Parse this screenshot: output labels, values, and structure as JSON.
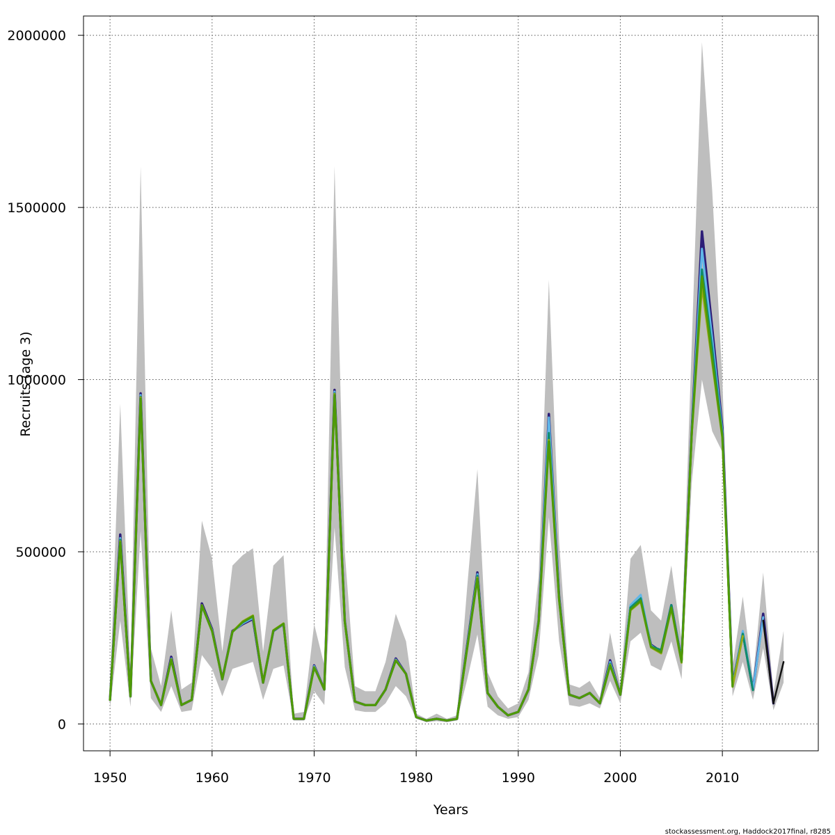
{
  "credit": "stockassessment.org, Haddock2017final, r8285",
  "chart_data": {
    "type": "line",
    "title": "",
    "xlabel": "Years",
    "ylabel": "Recruits (age 3)",
    "xlim": [
      1947.4,
      2019.4
    ],
    "ylim": [
      -78000,
      2056000
    ],
    "x_ticks": [
      1950,
      1960,
      1970,
      1980,
      1990,
      2000,
      2010
    ],
    "y_ticks": [
      0,
      500000,
      1000000,
      1500000,
      2000000
    ],
    "x_tick_labels": [
      "1950",
      "1960",
      "1970",
      "1980",
      "1990",
      "2000",
      "2010"
    ],
    "y_tick_labels": [
      "0",
      "500000",
      "1000000",
      "1500000",
      "2000000"
    ],
    "grid": true,
    "band_color": "#bebebe",
    "confidence_band": {
      "years": [
        1950,
        1951,
        1952,
        1953,
        1954,
        1955,
        1956,
        1957,
        1958,
        1959,
        1960,
        1961,
        1962,
        1963,
        1964,
        1965,
        1966,
        1967,
        1968,
        1969,
        1970,
        1971,
        1972,
        1973,
        1974,
        1975,
        1976,
        1977,
        1978,
        1979,
        1980,
        1981,
        1982,
        1983,
        1984,
        1985,
        1986,
        1987,
        1988,
        1989,
        1990,
        1991,
        1992,
        1993,
        1994,
        1995,
        1996,
        1997,
        1998,
        1999,
        2000,
        2001,
        2002,
        2003,
        2004,
        2005,
        2006,
        2007,
        2008,
        2009,
        2010,
        2011,
        2012,
        2013,
        2014,
        2015,
        2016
      ],
      "lower": [
        45000,
        300000,
        50000,
        560000,
        75000,
        35000,
        110000,
        35000,
        40000,
        200000,
        160000,
        80000,
        160000,
        170000,
        180000,
        70000,
        160000,
        170000,
        10000,
        10000,
        95000,
        55000,
        570000,
        165000,
        40000,
        35000,
        35000,
        60000,
        110000,
        80000,
        15000,
        5000,
        8000,
        5000,
        10000,
        130000,
        260000,
        50000,
        25000,
        15000,
        20000,
        70000,
        200000,
        600000,
        240000,
        55000,
        50000,
        60000,
        45000,
        125000,
        60000,
        240000,
        265000,
        170000,
        155000,
        240000,
        130000,
        700000,
        1000000,
        850000,
        790000,
        80000,
        180000,
        70000,
        220000,
        40000,
        120000
      ],
      "upper": [
        100000,
        930000,
        150000,
        1620000,
        220000,
        110000,
        330000,
        100000,
        120000,
        590000,
        480000,
        210000,
        460000,
        490000,
        510000,
        210000,
        460000,
        490000,
        30000,
        35000,
        290000,
        170000,
        1620000,
        500000,
        110000,
        95000,
        95000,
        180000,
        320000,
        240000,
        30000,
        15000,
        30000,
        15000,
        25000,
        400000,
        740000,
        150000,
        80000,
        45000,
        60000,
        150000,
        430000,
        1290000,
        530000,
        115000,
        105000,
        125000,
        75000,
        265000,
        110000,
        480000,
        520000,
        330000,
        300000,
        460000,
        245000,
        1100000,
        1980000,
        1550000,
        1000000,
        170000,
        370000,
        130000,
        440000,
        90000,
        270000
      ]
    },
    "series": [
      {
        "color": "#2d1e78",
        "width": 3.5,
        "years": [
          1950,
          1951,
          1952,
          1953,
          1954,
          1955,
          1956,
          1957,
          1958,
          1959,
          1960,
          1961,
          1962,
          1963,
          1964,
          1965,
          1966,
          1967,
          1968,
          1969,
          1970,
          1971,
          1972,
          1973,
          1974,
          1975,
          1976,
          1977,
          1978,
          1979,
          1980,
          1981,
          1982,
          1983,
          1984,
          1985,
          1986,
          1987,
          1988,
          1989,
          1990,
          1991,
          1992,
          1993,
          1994,
          1995,
          1996,
          1997,
          1998,
          1999,
          2000,
          2001,
          2002,
          2003,
          2004,
          2005,
          2006,
          2007,
          2008,
          2009,
          2010,
          2011,
          2012,
          2013,
          2014,
          2015
        ],
        "values": [
          70000,
          550000,
          80000,
          960000,
          125000,
          55000,
          195000,
          55000,
          70000,
          350000,
          275000,
          130000,
          270000,
          290000,
          305000,
          120000,
          270000,
          290000,
          15000,
          15000,
          170000,
          100000,
          970000,
          300000,
          65000,
          55000,
          55000,
          100000,
          190000,
          145000,
          20000,
          10000,
          15000,
          10000,
          15000,
          230000,
          440000,
          90000,
          50000,
          25000,
          35000,
          100000,
          300000,
          900000,
          370000,
          85000,
          75000,
          90000,
          60000,
          185000,
          85000,
          340000,
          360000,
          230000,
          210000,
          345000,
          185000,
          850000,
          1430000,
          1150000,
          860000,
          115000,
          265000,
          100000,
          320000,
          60000
        ]
      },
      {
        "color": "#5fb6e8",
        "width": 3,
        "years": [
          1950,
          1951,
          1952,
          1953,
          1954,
          1955,
          1956,
          1957,
          1958,
          1959,
          1960,
          1961,
          1962,
          1963,
          1964,
          1965,
          1966,
          1967,
          1968,
          1969,
          1970,
          1971,
          1972,
          1973,
          1974,
          1975,
          1976,
          1977,
          1978,
          1979,
          1980,
          1981,
          1982,
          1983,
          1984,
          1985,
          1986,
          1987,
          1988,
          1989,
          1990,
          1991,
          1992,
          1993,
          1994,
          1995,
          1996,
          1997,
          1998,
          1999,
          2000,
          2001,
          2002,
          2003,
          2004,
          2005,
          2006,
          2007,
          2008,
          2009,
          2010,
          2011,
          2012,
          2013,
          2014
        ],
        "values": [
          70000,
          540000,
          80000,
          955000,
          125000,
          55000,
          190000,
          55000,
          70000,
          345000,
          272000,
          130000,
          268000,
          292000,
          308000,
          120000,
          270000,
          290000,
          15000,
          15000,
          168000,
          100000,
          965000,
          300000,
          65000,
          55000,
          55000,
          100000,
          187000,
          145000,
          20000,
          10000,
          15000,
          10000,
          15000,
          228000,
          435000,
          90000,
          50000,
          25000,
          35000,
          100000,
          300000,
          890000,
          368000,
          85000,
          75000,
          90000,
          60000,
          180000,
          85000,
          345000,
          375000,
          228000,
          210000,
          345000,
          185000,
          850000,
          1380000,
          1120000,
          850000,
          112000,
          270000,
          100000,
          310000
        ]
      },
      {
        "color": "#0f8c6e",
        "width": 3,
        "years": [
          1950,
          1951,
          1952,
          1953,
          1954,
          1955,
          1956,
          1957,
          1958,
          1959,
          1960,
          1961,
          1962,
          1963,
          1964,
          1965,
          1966,
          1967,
          1968,
          1969,
          1970,
          1971,
          1972,
          1973,
          1974,
          1975,
          1976,
          1977,
          1978,
          1979,
          1980,
          1981,
          1982,
          1983,
          1984,
          1985,
          1986,
          1987,
          1988,
          1989,
          1990,
          1991,
          1992,
          1993,
          1994,
          1995,
          1996,
          1997,
          1998,
          1999,
          2000,
          2001,
          2002,
          2003,
          2004,
          2005,
          2006,
          2007,
          2008,
          2009,
          2010,
          2011,
          2012,
          2013
        ],
        "values": [
          70000,
          535000,
          80000,
          950000,
          125000,
          55000,
          188000,
          55000,
          70000,
          343000,
          270000,
          130000,
          268000,
          295000,
          312000,
          120000,
          270000,
          292000,
          15000,
          15000,
          165000,
          100000,
          960000,
          298000,
          65000,
          55000,
          55000,
          100000,
          185000,
          145000,
          20000,
          10000,
          15000,
          10000,
          15000,
          225000,
          430000,
          90000,
          50000,
          25000,
          35000,
          100000,
          298000,
          845000,
          365000,
          85000,
          75000,
          90000,
          60000,
          175000,
          85000,
          338000,
          365000,
          225000,
          215000,
          345000,
          183000,
          845000,
          1320000,
          1090000,
          840000,
          110000,
          262000,
          98000
        ]
      },
      {
        "color": "#9aaa18",
        "width": 3,
        "years": [
          1950,
          1951,
          1952,
          1953,
          1954,
          1955,
          1956,
          1957,
          1958,
          1959,
          1960,
          1961,
          1962,
          1963,
          1964,
          1965,
          1966,
          1967,
          1968,
          1969,
          1970,
          1971,
          1972,
          1973,
          1974,
          1975,
          1976,
          1977,
          1978,
          1979,
          1980,
          1981,
          1982,
          1983,
          1984,
          1985,
          1986,
          1987,
          1988,
          1989,
          1990,
          1991,
          1992,
          1993,
          1994,
          1995,
          1996,
          1997,
          1998,
          1999,
          2000,
          2001,
          2002,
          2003,
          2004,
          2005,
          2006,
          2007,
          2008,
          2009,
          2010,
          2011,
          2012
        ],
        "values": [
          70000,
          530000,
          80000,
          948000,
          125000,
          55000,
          188000,
          55000,
          70000,
          345000,
          270000,
          130000,
          268000,
          298000,
          315000,
          120000,
          272000,
          292000,
          15000,
          15000,
          165000,
          100000,
          958000,
          298000,
          65000,
          55000,
          55000,
          100000,
          185000,
          145000,
          20000,
          10000,
          15000,
          10000,
          15000,
          222000,
          425000,
          90000,
          50000,
          25000,
          35000,
          100000,
          296000,
          825000,
          362000,
          85000,
          75000,
          90000,
          60000,
          172000,
          85000,
          330000,
          355000,
          222000,
          205000,
          335000,
          178000,
          840000,
          1270000,
          1050000,
          830000,
          108000,
          255000
        ]
      },
      {
        "color": "#111111",
        "width": 2.5,
        "years": [
          2014,
          2015,
          2016
        ],
        "values": [
          300000,
          60000,
          180000
        ]
      },
      {
        "color": "#4e9a06",
        "width": 3,
        "years": [
          1950,
          1951,
          1952,
          1953,
          1954,
          1955,
          1956,
          1957,
          1958,
          1959,
          1960,
          1961,
          1962,
          1963,
          1964,
          1965,
          1966,
          1967,
          1968,
          1969,
          1970,
          1971,
          1972,
          1973,
          1974,
          1975,
          1976,
          1977,
          1978,
          1979,
          1980,
          1981,
          1982,
          1983,
          1984,
          1985,
          1986,
          1987,
          1988,
          1989,
          1990,
          1991,
          1992,
          1993,
          1994,
          1995,
          1996,
          1997,
          1998,
          1999,
          2000,
          2001,
          2002,
          2003,
          2004,
          2005,
          2006,
          2007,
          2008,
          2009,
          2010,
          2011
        ],
        "values": [
          70000,
          528000,
          80000,
          945000,
          125000,
          55000,
          187000,
          55000,
          70000,
          344000,
          269000,
          130000,
          267000,
          296000,
          313000,
          120000,
          271000,
          291000,
          15000,
          15000,
          164000,
          100000,
          955000,
          296000,
          65000,
          55000,
          55000,
          100000,
          184000,
          145000,
          20000,
          10000,
          15000,
          10000,
          15000,
          220000,
          422000,
          90000,
          50000,
          25000,
          35000,
          100000,
          294000,
          820000,
          360000,
          85000,
          75000,
          90000,
          60000,
          170000,
          85000,
          332000,
          358000,
          224000,
          208000,
          338000,
          180000,
          842000,
          1300000,
          1060000,
          835000,
          109000
        ]
      }
    ]
  }
}
